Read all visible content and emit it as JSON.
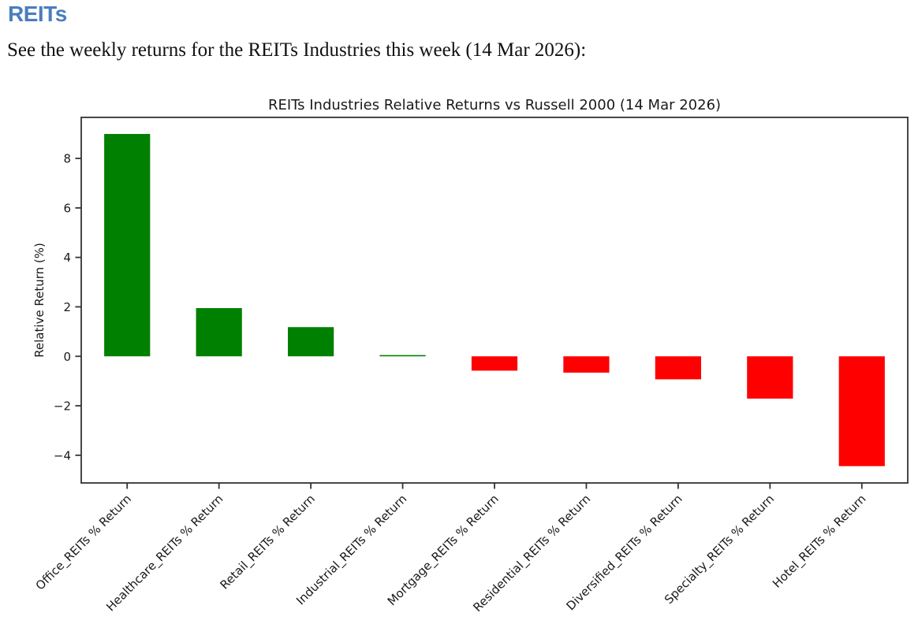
{
  "page": {
    "heading": "REITs",
    "heading_color": "#4a7ebd",
    "subtitle": "See the weekly returns for the REITs Industries this week (14 Mar 2026):"
  },
  "chart_data": {
    "type": "bar",
    "title": "REITs Industries Relative Returns vs Russell 2000 (14 Mar 2026)",
    "xlabel": "",
    "ylabel": "Relative Return (%)",
    "categories": [
      "Office_REITs % Return",
      "Healthcare_REITs % Return",
      "Retail_REITs % Return",
      "Industrial_REITs % Return",
      "Mortgage_REITs % Return",
      "Residential_REITs % Return",
      "Diversified_REITs % Return",
      "Specialty_REITs % Return",
      "Hotel_REITs % Return"
    ],
    "values": [
      8.99,
      1.95,
      1.18,
      0.05,
      -0.58,
      -0.66,
      -0.93,
      -1.71,
      -4.44
    ],
    "positive_color": "#008000",
    "negative_color": "#ff0000",
    "axis_color": "#333333",
    "text_color": "#1a1a1a",
    "ylim": [
      -5.12,
      9.66
    ],
    "yticks": [
      -4,
      -2,
      0,
      2,
      4,
      6,
      8
    ],
    "bar_width_ratio": 0.5,
    "x_label_rotation": -45,
    "grid": false,
    "legend_position": "none"
  }
}
